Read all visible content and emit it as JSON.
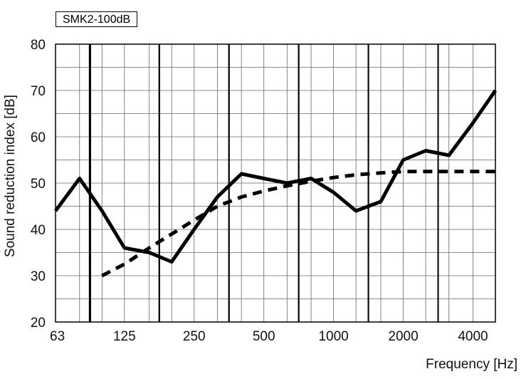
{
  "chart_data": {
    "type": "line",
    "legend_label": "SMK2-100dB",
    "xlabel": "Frequency [Hz]",
    "ylabel": "Sound reduction index [dB]",
    "ylim": [
      20,
      80
    ],
    "yticks": [
      20,
      30,
      40,
      50,
      60,
      70,
      80
    ],
    "x_scale": "log (third-octave bands)",
    "x": [
      63,
      80,
      100,
      125,
      160,
      200,
      250,
      315,
      400,
      500,
      630,
      800,
      1000,
      1250,
      1600,
      2000,
      2500,
      3150,
      4000,
      5000
    ],
    "x_tick_labels": [
      "63",
      "125",
      "250",
      "500",
      "1000",
      "2000",
      "4000"
    ],
    "grid": true,
    "series": [
      {
        "style": "solid",
        "color": "#000000",
        "values": [
          44,
          51,
          44,
          36,
          35,
          33,
          40,
          47,
          52,
          51,
          50,
          51,
          48,
          44,
          46,
          55,
          57,
          56,
          63,
          70
        ]
      },
      {
        "style": "dashed",
        "color": "#000000",
        "x": [
          100,
          125,
          160,
          200,
          250,
          315,
          400,
          500,
          630,
          800,
          1000,
          1250,
          1600,
          2000,
          2500,
          3150,
          4000,
          5000
        ],
        "values": [
          30,
          32.5,
          36,
          39,
          42,
          45,
          47,
          48.3,
          49.4,
          50.4,
          51.2,
          51.8,
          52.2,
          52.5,
          52.5,
          52.5,
          52.5,
          52.5
        ]
      }
    ]
  }
}
